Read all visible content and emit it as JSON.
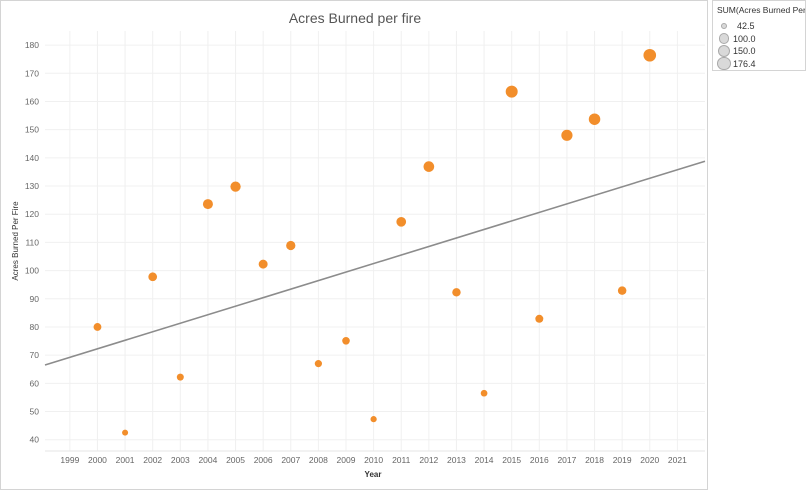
{
  "chart_data": {
    "type": "scatter",
    "title": "Acres Burned per fire",
    "xlabel": "Year",
    "ylabel": "Acres Burned Per Fire",
    "x_ticks": [
      "1999",
      "2000",
      "2001",
      "2002",
      "2003",
      "2004",
      "2005",
      "2006",
      "2007",
      "2008",
      "2009",
      "2010",
      "2011",
      "2012",
      "2013",
      "2014",
      "2015",
      "2016",
      "2017",
      "2018",
      "2019",
      "2020",
      "2021"
    ],
    "y_ticks": [
      40,
      50,
      60,
      70,
      80,
      90,
      100,
      110,
      120,
      130,
      140,
      150,
      160,
      170,
      180
    ],
    "xlim": [
      1998.1,
      2022.0
    ],
    "ylim": [
      36,
      185
    ],
    "grid": true,
    "points": [
      {
        "x": 2000,
        "y": 80.0
      },
      {
        "x": 2001,
        "y": 42.5
      },
      {
        "x": 2002,
        "y": 97.8
      },
      {
        "x": 2003,
        "y": 62.2
      },
      {
        "x": 2004,
        "y": 123.6
      },
      {
        "x": 2005,
        "y": 129.8
      },
      {
        "x": 2006,
        "y": 102.3
      },
      {
        "x": 2007,
        "y": 108.9
      },
      {
        "x": 2008,
        "y": 67.0
      },
      {
        "x": 2009,
        "y": 75.1
      },
      {
        "x": 2010,
        "y": 47.3
      },
      {
        "x": 2011,
        "y": 117.3
      },
      {
        "x": 2012,
        "y": 136.9
      },
      {
        "x": 2013,
        "y": 92.3
      },
      {
        "x": 2014,
        "y": 56.5
      },
      {
        "x": 2015,
        "y": 163.5
      },
      {
        "x": 2016,
        "y": 82.9
      },
      {
        "x": 2017,
        "y": 148.0
      },
      {
        "x": 2018,
        "y": 153.7
      },
      {
        "x": 2019,
        "y": 92.9
      },
      {
        "x": 2020,
        "y": 176.4
      }
    ],
    "trend_line": {
      "x": [
        1998.1,
        2022.0
      ],
      "y": [
        66.5,
        138.8
      ]
    },
    "colors": {
      "marker": "#f28e2b",
      "trend": "#8c8c8c",
      "grid": "#f0f0f0",
      "axis_text": "#666666"
    },
    "size_legend": {
      "title": "SUM(Acres Burned Per ...",
      "entries": [
        "42.5",
        "100.0",
        "150.0",
        "176.4"
      ],
      "values": [
        42.5,
        100.0,
        150.0,
        176.4
      ],
      "placement": "top-right"
    }
  }
}
